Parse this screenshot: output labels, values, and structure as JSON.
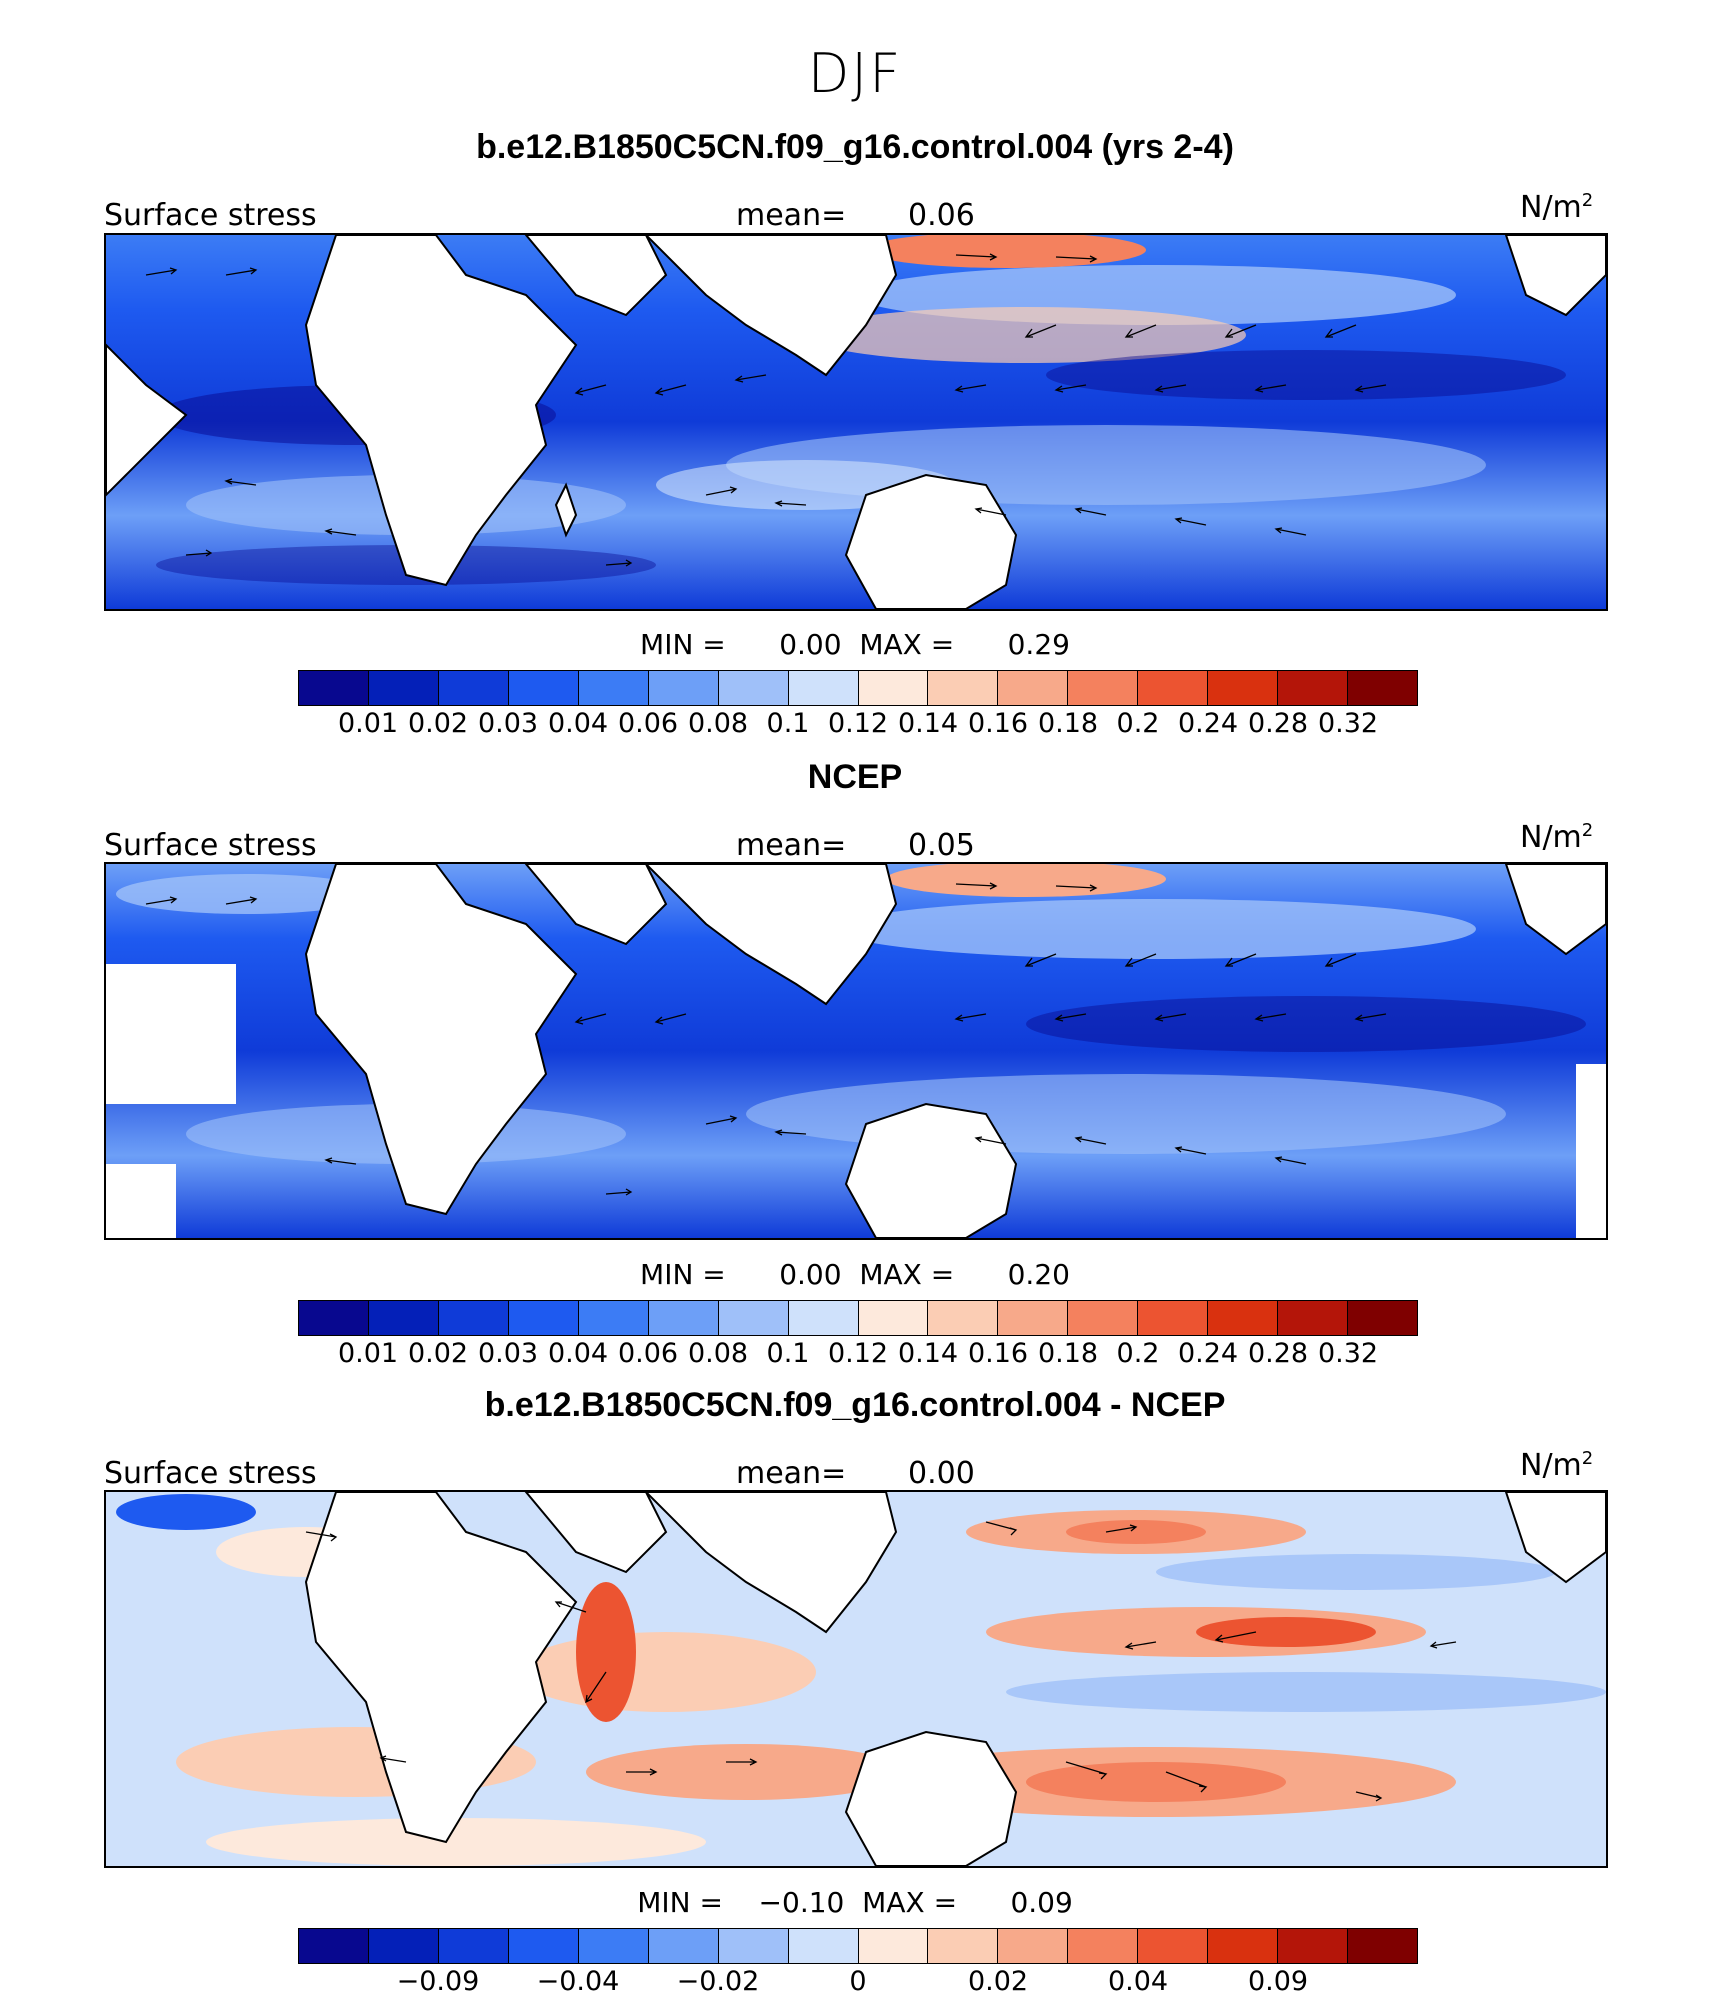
{
  "title": "DJF",
  "colors": [
    "#08088f",
    "#0420b8",
    "#0f3bd8",
    "#1e5af0",
    "#3c7cf5",
    "#6d9ff7",
    "#9fc0f9",
    "#cfe1fb",
    "#fde9dc",
    "#fbcdb4",
    "#f7a98a",
    "#f4815e",
    "#ec5431",
    "#d9310f",
    "#b41509",
    "#7f0000"
  ],
  "panels": [
    {
      "title": "b.e12.B1850C5CN.f09_g16.control.004 (yrs 2-4)",
      "left_label": "Surface stress",
      "mean_label": "mean=",
      "mean_value": "0.06",
      "units": "N/m",
      "units_sup": "2",
      "min_label": "MIN =",
      "min_value": "0.00",
      "max_label": "MAX =",
      "max_value": "0.29",
      "ticks": [
        "0.01",
        "0.02",
        "0.03",
        "0.04",
        "0.06",
        "0.08",
        "0.1",
        "0.12",
        "0.14",
        "0.16",
        "0.18",
        "0.2",
        "0.24",
        "0.28",
        "0.32"
      ]
    },
    {
      "title": "NCEP",
      "left_label": "Surface stress",
      "mean_label": "mean=",
      "mean_value": "0.05",
      "units": "N/m",
      "units_sup": "2",
      "min_label": "MIN =",
      "min_value": "0.00",
      "max_label": "MAX =",
      "max_value": "0.20",
      "ticks": [
        "0.01",
        "0.02",
        "0.03",
        "0.04",
        "0.06",
        "0.08",
        "0.1",
        "0.12",
        "0.14",
        "0.16",
        "0.18",
        "0.2",
        "0.24",
        "0.28",
        "0.32"
      ]
    },
    {
      "title": "b.e12.B1850C5CN.f09_g16.control.004 - NCEP",
      "left_label": "Surface stress",
      "mean_label": "mean=",
      "mean_value": "0.00",
      "units": "N/m",
      "units_sup": "2",
      "min_label": "MIN =",
      "min_value": "−0.10",
      "max_label": "MAX =",
      "max_value": "0.09",
      "ticks": [
        "",
        "−0.09",
        "",
        "−0.04",
        "",
        "−0.02",
        "",
        "0",
        "",
        "0.02",
        "",
        "0.04",
        "",
        "0.09",
        ""
      ]
    }
  ]
}
